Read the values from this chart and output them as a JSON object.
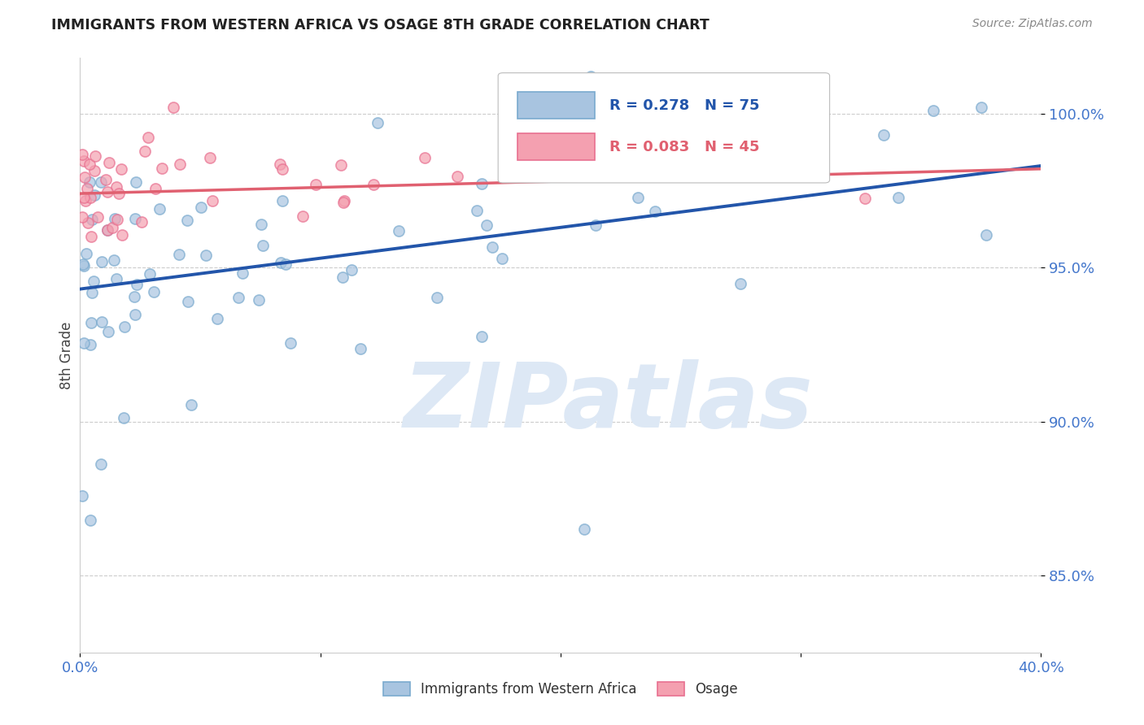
{
  "title": "IMMIGRANTS FROM WESTERN AFRICA VS OSAGE 8TH GRADE CORRELATION CHART",
  "source_text": "Source: ZipAtlas.com",
  "ylabel": "8th Grade",
  "blue_R": 0.278,
  "blue_N": 75,
  "pink_R": 0.083,
  "pink_N": 45,
  "blue_color": "#a8c4e0",
  "pink_color": "#f4a0b0",
  "blue_edge_color": "#7aaace",
  "pink_edge_color": "#e87090",
  "blue_line_color": "#2255AA",
  "pink_line_color": "#e06070",
  "x_min": 0.0,
  "x_max": 0.4,
  "y_min": 0.825,
  "y_max": 1.018,
  "yticks": [
    0.85,
    0.9,
    0.95,
    1.0
  ],
  "ytick_labels": [
    "85.0%",
    "90.0%",
    "95.0%",
    "100.0%"
  ],
  "xticks": [
    0.0,
    0.1,
    0.2,
    0.3,
    0.4
  ],
  "xtick_labels": [
    "0.0%",
    "",
    "",
    "",
    "40.0%"
  ],
  "legend_blue_label": "Immigrants from Western Africa",
  "legend_pink_label": "Osage",
  "blue_line_y0": 0.943,
  "blue_line_y1": 0.983,
  "pink_line_y0": 0.974,
  "pink_line_y1": 0.982,
  "watermark_text": "ZIPatlas",
  "watermark_color": "#dde8f5",
  "background_color": "#ffffff",
  "grid_color": "#cccccc",
  "axis_label_color": "#4477cc",
  "title_color": "#222222"
}
